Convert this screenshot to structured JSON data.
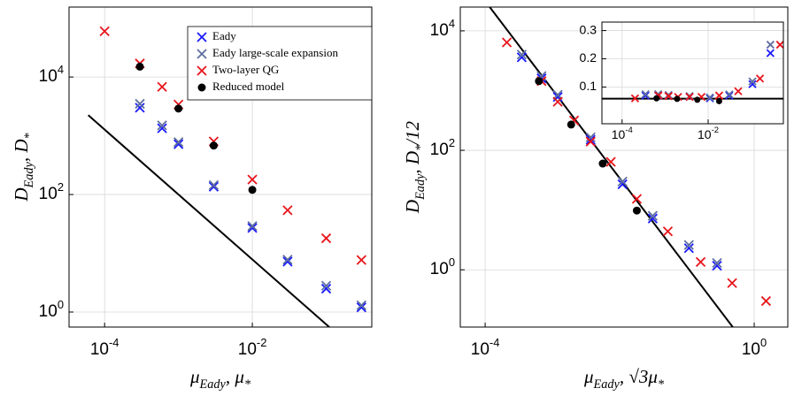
{
  "chart_data": [
    {
      "type": "scatter",
      "xlog": true,
      "ylog": true,
      "grid": true,
      "legend": "upper right",
      "xlabel": "μ_{Eady}, μ_{*}",
      "ylabel": "D_{Eady}, D_{*}",
      "xlim": [
        3.3e-05,
        0.414
      ],
      "ylim": [
        0.555,
        155000
      ],
      "xticks": [
        {
          "value": 0.0001,
          "label": "10^{-4}"
        },
        {
          "value": 0.01,
          "label": "10^{-2}"
        }
      ],
      "yticks": [
        {
          "value": 1,
          "label": "10^{0}"
        },
        {
          "value": 100,
          "label": "10^{2}"
        },
        {
          "value": 10000,
          "label": "10^{4}"
        }
      ],
      "series": [
        {
          "name": "Eady",
          "color": "#1a1aff",
          "marker": "x",
          "x": [
            0.0003,
            0.0006,
            0.001,
            0.003,
            0.01,
            0.03,
            0.1,
            0.3
          ],
          "values": [
            3000,
            1340,
            720,
            136,
            27,
            7.2,
            2.5,
            1.2
          ]
        },
        {
          "name": "Eady large-scale expansion",
          "color": "#5f6f9f",
          "marker": "x",
          "x": [
            0.0003,
            0.0006,
            0.001,
            0.003,
            0.01,
            0.03,
            0.1,
            0.3
          ],
          "values": [
            3500,
            1500,
            780,
            145,
            29,
            7.8,
            2.8,
            1.3
          ]
        },
        {
          "name": "Two-layer QG",
          "color": "#e8141b",
          "marker": "x",
          "x": [
            0.0001,
            0.0003,
            0.0006,
            0.001,
            0.003,
            0.01,
            0.03,
            0.1,
            0.3
          ],
          "values": [
            60000,
            17000,
            6800,
            3400,
            800,
            180,
            54,
            18,
            7.7
          ]
        },
        {
          "name": "Reduced model",
          "color": "#000000",
          "marker": "o",
          "x": [
            0.0003,
            0.001,
            0.003,
            0.01
          ],
          "values": [
            15000,
            2900,
            680,
            120
          ]
        }
      ],
      "line": {
        "color": "#000000",
        "x": [
          6e-05,
          0.11
        ],
        "values": [
          2240,
          0.555
        ]
      }
    },
    {
      "type": "scatter",
      "xlog": true,
      "ylog": true,
      "grid": true,
      "xlabel": "μ_{Eady}, √3μ_{*}",
      "ylabel": "D_{Eady}, D_{*}/12",
      "xlim": [
        4.27e-05,
        3.16
      ],
      "ylim": [
        0.11,
        25000
      ],
      "xticks": [
        {
          "value": 0.0001,
          "label": "10^{-4}"
        },
        {
          "value": 1,
          "label": "10^{0}"
        }
      ],
      "yticks": [
        {
          "value": 1,
          "label": "10^{0}"
        },
        {
          "value": 100,
          "label": "10^{2}"
        },
        {
          "value": 10000,
          "label": "10^{4}"
        }
      ],
      "series": [
        {
          "color": "#1a1aff",
          "marker": "x",
          "x": [
            0.00035,
            0.00069,
            0.0012,
            0.0037,
            0.011,
            0.031,
            0.107,
            0.28
          ],
          "values": [
            3600,
            1600,
            780,
            150,
            27,
            7.2,
            2.3,
            1.17
          ]
        },
        {
          "color": "#5f6f9f",
          "marker": "x",
          "x": [
            0.00035,
            0.00069,
            0.0012,
            0.0037,
            0.011,
            0.031,
            0.107,
            0.28
          ],
          "values": [
            4000,
            1750,
            850,
            165,
            30,
            8,
            2.6,
            1.3
          ]
        },
        {
          "color": "#e8141b",
          "marker": "x",
          "x": [
            0.00021,
            0.00069,
            0.0012,
            0.0021,
            0.0037,
            0.0074,
            0.018,
            0.052,
            0.16,
            0.47,
            1.5
          ],
          "values": [
            6400,
            1440,
            650,
            316,
            140,
            64,
            15.4,
            4.4,
            1.35,
            0.6,
            0.3
          ]
        },
        {
          "color": "#000000",
          "marker": "o",
          "x": [
            0.00063,
            0.0019,
            0.0056,
            0.018
          ],
          "values": [
            1440,
            270,
            60,
            9.8
          ]
        }
      ],
      "line": {
        "color": "#000000",
        "x": [
          0.000117,
          0.48
        ],
        "values": [
          25000,
          0.11
        ]
      }
    },
    {
      "type": "scatter",
      "xlog": true,
      "ylog": false,
      "grid": true,
      "xlim": [
        3.4e-05,
        0.56
      ],
      "ylim": [
        -0.03,
        0.33
      ],
      "xticks": [
        {
          "value": 0.0001,
          "label": "10^{-4}"
        },
        {
          "value": 0.01,
          "label": "10^{-2}"
        }
      ],
      "yticks": [
        0.1,
        0.2,
        0.3
      ],
      "series": [
        {
          "color": "#1a1aff",
          "marker": "x",
          "x": [
            0.00035,
            0.00069,
            0.0012,
            0.0037,
            0.011,
            0.031,
            0.107,
            0.28
          ],
          "values": [
            0.07,
            0.07,
            0.068,
            0.065,
            0.06,
            0.07,
            0.11,
            0.22
          ]
        },
        {
          "color": "#5f6f9f",
          "marker": "x",
          "x": [
            0.00035,
            0.00069,
            0.0012,
            0.0037,
            0.011,
            0.031,
            0.107,
            0.28
          ],
          "values": [
            0.075,
            0.075,
            0.072,
            0.068,
            0.063,
            0.074,
            0.12,
            0.25
          ]
        },
        {
          "color": "#e8141b",
          "marker": "x",
          "x": [
            0.0002,
            0.0007,
            0.0012,
            0.002,
            0.0037,
            0.007,
            0.018,
            0.05,
            0.16,
            0.47
          ],
          "values": [
            0.06,
            0.07,
            0.068,
            0.065,
            0.065,
            0.065,
            0.07,
            0.085,
            0.13,
            0.25
          ]
        },
        {
          "color": "#000000",
          "marker": "o",
          "x": [
            0.00063,
            0.0019,
            0.0056,
            0.018
          ],
          "values": [
            0.06,
            0.058,
            0.055,
            0.05
          ]
        }
      ],
      "line": {
        "color": "#000000",
        "x": [
          3.4e-05,
          0.56
        ],
        "values": [
          0.059,
          0.059
        ]
      }
    }
  ]
}
